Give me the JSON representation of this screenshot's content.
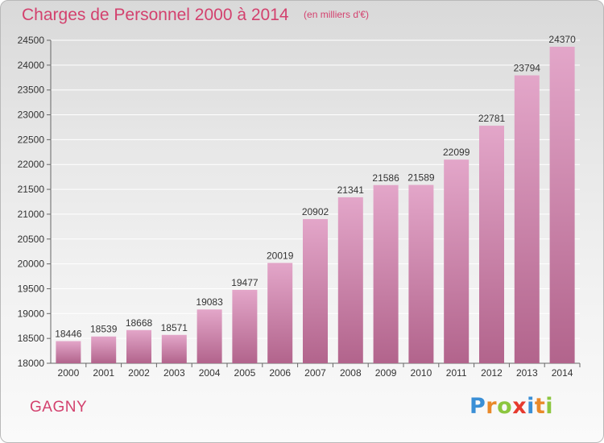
{
  "chart_data": {
    "type": "bar",
    "title": "Charges de Personnel 2000 à 2014",
    "subtitle": "(en milliers d'€)",
    "categories": [
      "2000",
      "2001",
      "2002",
      "2003",
      "2004",
      "2005",
      "2006",
      "2007",
      "2008",
      "2009",
      "2010",
      "2011",
      "2012",
      "2013",
      "2014"
    ],
    "values": [
      18446,
      18539,
      18668,
      18571,
      19083,
      19477,
      20019,
      20902,
      21341,
      21586,
      21589,
      22099,
      22781,
      23794,
      24370
    ],
    "ylim": [
      18000,
      24500
    ],
    "yticks": [
      18000,
      18500,
      19000,
      19500,
      20000,
      20500,
      21000,
      21500,
      22000,
      22500,
      23000,
      23500,
      24000,
      24500
    ],
    "grid": true,
    "bar_color_top": "#e3a6c9",
    "bar_color_bottom": "#b2648c"
  },
  "footer": {
    "city": "GAGNY",
    "brand_letters": [
      {
        "char": "P",
        "color": "#3a8fd6"
      },
      {
        "char": "r",
        "color": "#e9892a"
      },
      {
        "char": "o",
        "color": "#8cc63f"
      },
      {
        "char": "x",
        "color": "#e63a2e"
      },
      {
        "char": "i",
        "color": "#3a8fd6"
      },
      {
        "char": "t",
        "color": "#e9892a"
      },
      {
        "char": "i",
        "color": "#8cc63f"
      }
    ]
  },
  "colors": {
    "title": "#d3416e",
    "grid": "#ffffff",
    "text": "#333333"
  }
}
